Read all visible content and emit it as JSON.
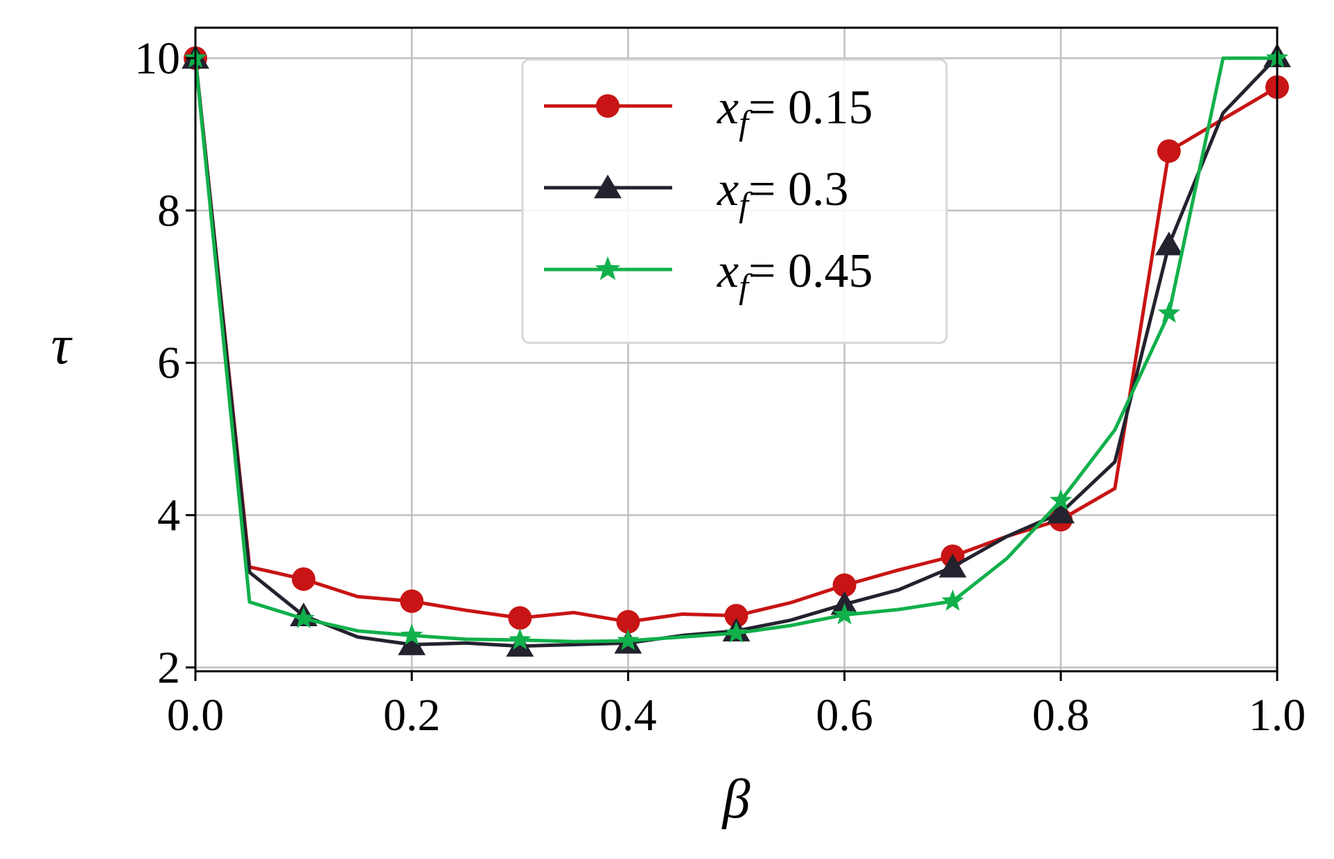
{
  "chart_data": {
    "type": "line",
    "xlabel": "β",
    "ylabel": "τ",
    "xlim": [
      0.0,
      1.0
    ],
    "ylim": [
      1.95,
      10.4
    ],
    "xticks": [
      0.0,
      0.2,
      0.4,
      0.6,
      0.8,
      1.0
    ],
    "xtick_labels": [
      "0.0",
      "0.2",
      "0.4",
      "0.6",
      "0.8",
      "1.0"
    ],
    "yticks": [
      2,
      4,
      6,
      8,
      10
    ],
    "ytick_labels": [
      "2",
      "4",
      "6",
      "8",
      "10"
    ],
    "grid": true,
    "legend_position": "top-center",
    "x": [
      0.0,
      0.05,
      0.1,
      0.15,
      0.2,
      0.25,
      0.3,
      0.35,
      0.4,
      0.45,
      0.5,
      0.55,
      0.6,
      0.65,
      0.7,
      0.75,
      0.8,
      0.85,
      0.9,
      0.95,
      1.0
    ],
    "series": [
      {
        "name": "x_f = 0.15",
        "legend_var": "x",
        "legend_sub": "f",
        "legend_value": "= 0.15",
        "color": "#c81414",
        "marker": "circle",
        "values": [
          10.0,
          3.32,
          3.16,
          2.93,
          2.87,
          2.75,
          2.65,
          2.72,
          2.6,
          2.7,
          2.68,
          2.85,
          3.08,
          3.28,
          3.46,
          3.72,
          3.94,
          4.35,
          8.78,
          9.2,
          9.62
        ]
      },
      {
        "name": "x_f = 0.3",
        "legend_var": "x",
        "legend_sub": "f",
        "legend_value": "= 0.3",
        "color": "#23222e",
        "marker": "triangle",
        "values": [
          10.0,
          3.25,
          2.68,
          2.4,
          2.3,
          2.32,
          2.28,
          2.3,
          2.32,
          2.42,
          2.48,
          2.62,
          2.83,
          3.02,
          3.32,
          3.72,
          4.03,
          4.7,
          7.55,
          9.28,
          10.02
        ]
      },
      {
        "name": "x_f = 0.45",
        "legend_var": "x",
        "legend_sub": "f",
        "legend_value": "= 0.45",
        "color": "#11b04b",
        "marker": "star",
        "values": [
          10.0,
          2.86,
          2.64,
          2.48,
          2.42,
          2.37,
          2.36,
          2.34,
          2.35,
          2.4,
          2.45,
          2.55,
          2.69,
          2.76,
          2.87,
          3.43,
          4.19,
          5.12,
          6.65,
          10.0,
          10.0
        ]
      }
    ]
  }
}
